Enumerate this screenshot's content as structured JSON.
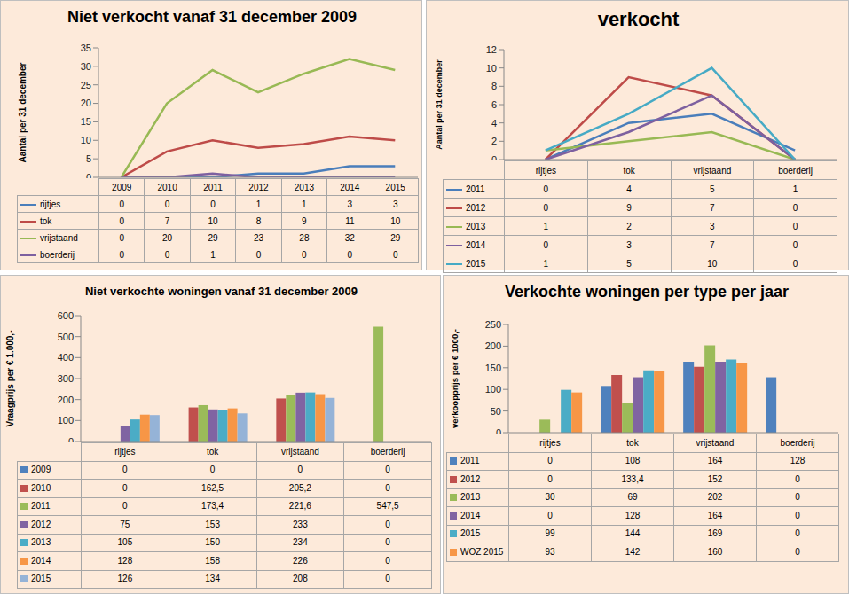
{
  "chart_data": [
    {
      "type": "line",
      "title": "Niet verkocht vanaf 31 december 2009",
      "y_label": "Aantal per 31 december",
      "categories": [
        "2009",
        "2010",
        "2011",
        "2012",
        "2013",
        "2014",
        "2015"
      ],
      "series": [
        {
          "name": "rijtjes",
          "color": "#4a7ebb",
          "values": [
            0,
            0,
            0,
            1,
            1,
            3,
            3
          ]
        },
        {
          "name": "tok",
          "color": "#be4b48",
          "values": [
            0,
            7,
            10,
            8,
            9,
            11,
            10
          ]
        },
        {
          "name": "vrijstaand",
          "color": "#98b954",
          "values": [
            0,
            20,
            29,
            23,
            28,
            32,
            29
          ]
        },
        {
          "name": "boerderij",
          "color": "#7d60a0",
          "values": [
            0,
            0,
            1,
            0,
            0,
            0,
            0
          ]
        }
      ],
      "ylim": [
        0,
        35
      ],
      "yticks": [
        0,
        5,
        10,
        15,
        20,
        25,
        30,
        35
      ],
      "grid": false
    },
    {
      "type": "line",
      "title": "verkocht",
      "y_label": "Aantal per 31 december",
      "categories": [
        "rijtjes",
        "tok",
        "vrijstaand",
        "boerderij"
      ],
      "series": [
        {
          "name": "2011",
          "color": "#4a7ebb",
          "values": [
            0,
            4,
            5,
            1
          ]
        },
        {
          "name": "2012",
          "color": "#be4b48",
          "values": [
            0,
            9,
            7,
            0
          ]
        },
        {
          "name": "2013",
          "color": "#98b954",
          "values": [
            1,
            2,
            3,
            0
          ]
        },
        {
          "name": "2014",
          "color": "#7d60a0",
          "values": [
            0,
            3,
            7,
            0
          ]
        },
        {
          "name": "2015",
          "color": "#46aac5",
          "values": [
            1,
            5,
            10,
            0
          ]
        }
      ],
      "ylim": [
        0,
        12
      ],
      "yticks": [
        0,
        2,
        4,
        6,
        8,
        10,
        12
      ],
      "grid": false
    },
    {
      "type": "bar",
      "title": "Niet verkochte woningen vanaf 31 december 2009",
      "y_label": "Vraagprijs per € 1.000,-",
      "categories": [
        "rijtjes",
        "tok",
        "vrijstaand",
        "boerderij"
      ],
      "series": [
        {
          "name": "2009",
          "color": "#4f81bd",
          "values": [
            0,
            0,
            0,
            0
          ]
        },
        {
          "name": "2010",
          "color": "#c0504d",
          "values": [
            0,
            162.5,
            205.2,
            0
          ],
          "value_labels": [
            "0",
            "162,5",
            "205,2",
            "0"
          ]
        },
        {
          "name": "2011",
          "color": "#9bbb59",
          "values": [
            0,
            173.4,
            221.6,
            547.5
          ],
          "value_labels": [
            "0",
            "173,4",
            "221,6",
            "547,5"
          ]
        },
        {
          "name": "2012",
          "color": "#8064a2",
          "values": [
            75,
            153,
            233,
            0
          ]
        },
        {
          "name": "2013",
          "color": "#4bacc6",
          "values": [
            105,
            150,
            234,
            0
          ]
        },
        {
          "name": "2014",
          "color": "#f79646",
          "values": [
            128,
            158,
            226,
            0
          ]
        },
        {
          "name": "2015",
          "color": "#95b3d7",
          "values": [
            126,
            134,
            208,
            0
          ]
        }
      ],
      "ylim": [
        0,
        600
      ],
      "yticks": [
        0,
        100,
        200,
        300,
        400,
        500,
        600
      ],
      "grid": false
    },
    {
      "type": "bar",
      "title": "Verkochte woningen per type per jaar",
      "y_label": "verkoopprijs per € 1000,-",
      "categories": [
        "rijtjes",
        "tok",
        "vrijstaand",
        "boerderij"
      ],
      "series": [
        {
          "name": "2011",
          "color": "#4f81bd",
          "values": [
            0,
            108,
            164,
            128
          ]
        },
        {
          "name": "2012",
          "color": "#c0504d",
          "values": [
            0,
            133.4,
            152,
            0
          ],
          "value_labels": [
            "0",
            "133,4",
            "152",
            "0"
          ]
        },
        {
          "name": "2013",
          "color": "#9bbb59",
          "values": [
            30,
            69,
            202,
            0
          ]
        },
        {
          "name": "2014",
          "color": "#8064a2",
          "values": [
            0,
            128,
            164,
            0
          ]
        },
        {
          "name": "2015",
          "color": "#4bacc6",
          "values": [
            99,
            144,
            169,
            0
          ]
        },
        {
          "name": "WOZ 2015",
          "color": "#f79646",
          "values": [
            93,
            142,
            160,
            0
          ]
        }
      ],
      "ylim": [
        0,
        250
      ],
      "yticks": [
        0,
        50,
        100,
        150,
        200,
        250
      ],
      "grid": false
    }
  ]
}
